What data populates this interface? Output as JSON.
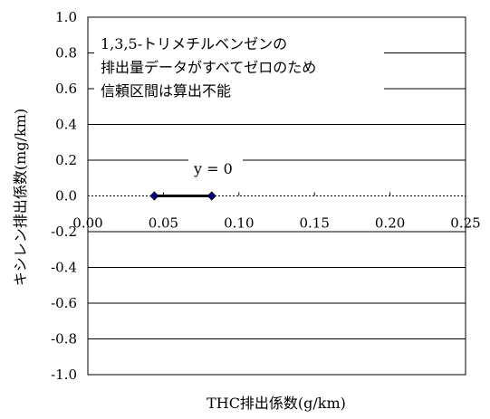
{
  "chart_data": {
    "type": "scatter",
    "title": "",
    "xlabel": "THC排出係数(g/km)",
    "ylabel": "キシレン排出係数(mg/km)",
    "xlim": [
      0,
      0.25
    ],
    "ylim": [
      -1.0,
      1.0
    ],
    "x_ticks": [
      "0.00",
      "0.05",
      "0.10",
      "0.15",
      "0.20",
      "0.25"
    ],
    "y_ticks": [
      "1.0",
      "0.8",
      "0.6",
      "0.4",
      "0.2",
      "0.0",
      "-0.2",
      "-0.4",
      "-0.6",
      "-0.8",
      "-1.0"
    ],
    "grid": "horizontal",
    "series": [
      {
        "points": [
          {
            "x": 0.044,
            "y": 0
          },
          {
            "x": 0.082,
            "y": 0
          }
        ],
        "marker_color": "#000080"
      }
    ],
    "annotations": {
      "note_lines": [
        "1,3,5-トリメチルベンゼンの",
        "排出量データがすべてゼロのため",
        "信頼区間は算出不能"
      ],
      "equation": "y = 0"
    }
  }
}
